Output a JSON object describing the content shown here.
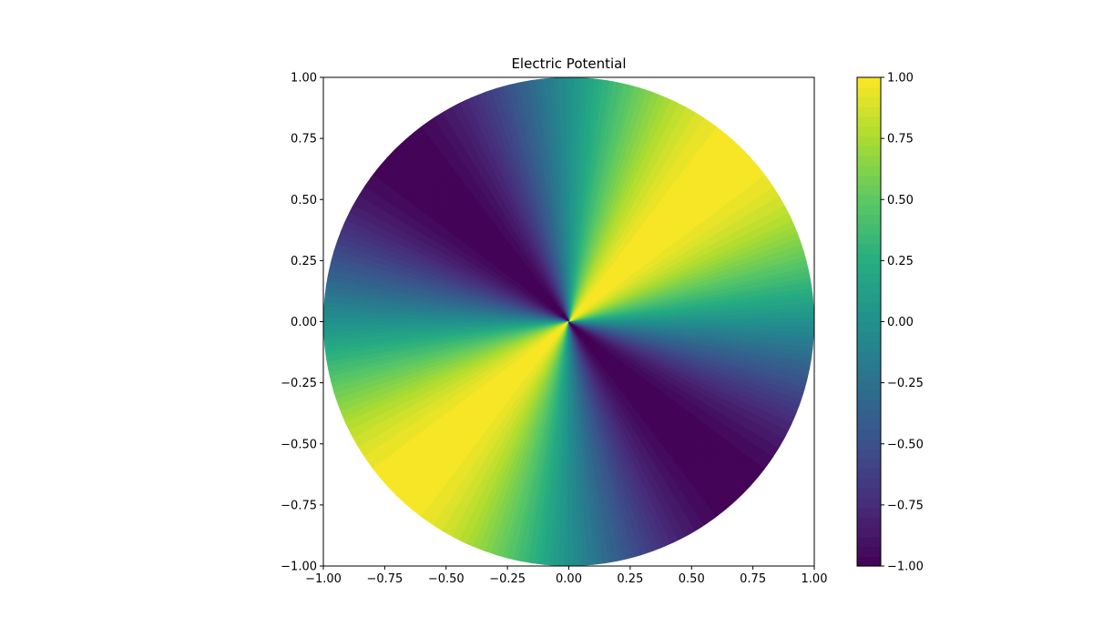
{
  "chart_data": {
    "type": "heatmap",
    "title": "Electric Potential",
    "xlabel": "",
    "ylabel": "",
    "xlim": [
      -1.0,
      1.0
    ],
    "ylim": [
      -1.0,
      1.0
    ],
    "x_ticks": [
      "−1.00",
      "−0.75",
      "−0.50",
      "−0.25",
      "0.00",
      "0.25",
      "0.50",
      "0.75",
      "1.00"
    ],
    "y_ticks": [
      "−1.00",
      "−0.75",
      "−0.50",
      "−0.25",
      "0.00",
      "0.25",
      "0.50",
      "0.75",
      "1.00"
    ],
    "domain": "unit disk",
    "field": "potential V(r, θ) = sin(2θ)",
    "value_range": [
      -1.0,
      1.0
    ],
    "levels": 50,
    "colormap": "viridis",
    "grid": false,
    "colorbar": {
      "position": "right",
      "ticks": [
        "−1.00",
        "−0.75",
        "−0.50",
        "−0.25",
        "0.00",
        "0.25",
        "0.50",
        "0.75",
        "1.00"
      ],
      "tick_values": [
        -1.0,
        -0.75,
        -0.5,
        -0.25,
        0.0,
        0.25,
        0.5,
        0.75,
        1.0
      ]
    }
  }
}
